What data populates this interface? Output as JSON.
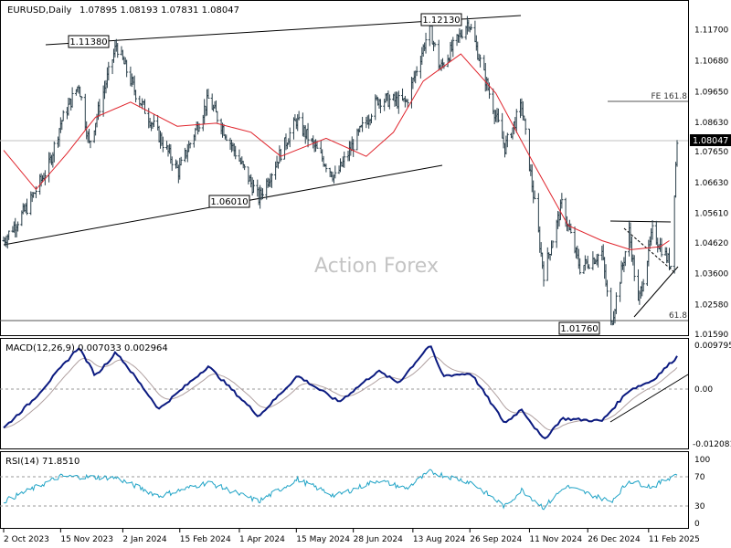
{
  "chart_data": [
    {
      "type": "ohlc",
      "title": "EURUSD,Daily",
      "ohlc_readout": "1.07895 1.08193 1.07831 1.08047",
      "watermark": "Action Forex",
      "current_price": 1.08047,
      "current_price_label": "1.08047",
      "ylim": [
        1.0159,
        1.1245
      ],
      "y_ticks": [
        1.117,
        1.1068,
        1.0965,
        1.0863,
        1.0765,
        1.0663,
        1.0561,
        1.0462,
        1.036,
        1.0258,
        1.0159
      ],
      "y_tick_labels": [
        "1.11700",
        "1.10680",
        "1.09650",
        "1.08630",
        "1.07650",
        "1.06630",
        "1.05610",
        "1.04620",
        "1.03600",
        "1.02580",
        "1.01590"
      ],
      "x_tick_labels": [
        "2 Oct 2023",
        "15 Nov 2023",
        "2 Jan 2024",
        "15 Feb 2024",
        "1 Apr 2024",
        "15 May 2024",
        "28 Jun 2024",
        "13 Aug 2024",
        "26 Sep 2024",
        "11 Nov 2024",
        "26 Dec 2024",
        "11 Feb 2025"
      ],
      "annotations": [
        {
          "label": "1.11380",
          "value": 1.1138,
          "kind": "box"
        },
        {
          "label": "1.12130",
          "value": 1.1213,
          "kind": "box"
        },
        {
          "label": "1.06010",
          "value": 1.0601,
          "kind": "box"
        },
        {
          "label": "1.01760",
          "value": 1.0176,
          "kind": "box"
        },
        {
          "label": "FE 161.8",
          "value": 1.0935,
          "kind": "level"
        },
        {
          "label": "61.8",
          "value": 1.0185,
          "kind": "level"
        }
      ],
      "close_series_keypoints": [
        {
          "x": "2023-10-02",
          "y": 1.047
        },
        {
          "x": "2023-10-20",
          "y": 1.058
        },
        {
          "x": "2023-11-06",
          "y": 1.072
        },
        {
          "x": "2023-11-15",
          "y": 1.086
        },
        {
          "x": "2023-11-29",
          "y": 1.099
        },
        {
          "x": "2023-12-07",
          "y": 1.079
        },
        {
          "x": "2023-12-28",
          "y": 1.112
        },
        {
          "x": "2024-01-12",
          "y": 1.096
        },
        {
          "x": "2024-02-14",
          "y": 1.07
        },
        {
          "x": "2024-03-08",
          "y": 1.094
        },
        {
          "x": "2024-04-16",
          "y": 1.061
        },
        {
          "x": "2024-05-15",
          "y": 1.087
        },
        {
          "x": "2024-06-14",
          "y": 1.068
        },
        {
          "x": "2024-07-17",
          "y": 1.094
        },
        {
          "x": "2024-08-08",
          "y": 1.093
        },
        {
          "x": "2024-08-26",
          "y": 1.118
        },
        {
          "x": "2024-09-03",
          "y": 1.104
        },
        {
          "x": "2024-09-25",
          "y": 1.12
        },
        {
          "x": "2024-10-23",
          "y": 1.078
        },
        {
          "x": "2024-11-05",
          "y": 1.092
        },
        {
          "x": "2024-11-22",
          "y": 1.036
        },
        {
          "x": "2024-12-06",
          "y": 1.059
        },
        {
          "x": "2024-12-20",
          "y": 1.038
        },
        {
          "x": "2025-01-06",
          "y": 1.043
        },
        {
          "x": "2025-01-13",
          "y": 1.019
        },
        {
          "x": "2025-01-27",
          "y": 1.05
        },
        {
          "x": "2025-02-03",
          "y": 1.026
        },
        {
          "x": "2025-02-14",
          "y": 1.05
        },
        {
          "x": "2025-02-28",
          "y": 1.039
        },
        {
          "x": "2025-03-05",
          "y": 1.0805
        }
      ],
      "moving_average_keypoints": [
        {
          "x": "2023-10-02",
          "y": 1.077
        },
        {
          "x": "2023-10-27",
          "y": 1.064
        },
        {
          "x": "2023-11-20",
          "y": 1.076
        },
        {
          "x": "2023-12-12",
          "y": 1.088
        },
        {
          "x": "2024-01-08",
          "y": 1.093
        },
        {
          "x": "2024-02-13",
          "y": 1.085
        },
        {
          "x": "2024-03-14",
          "y": 1.086
        },
        {
          "x": "2024-04-10",
          "y": 1.083
        },
        {
          "x": "2024-05-03",
          "y": 1.075
        },
        {
          "x": "2024-06-07",
          "y": 1.081
        },
        {
          "x": "2024-07-08",
          "y": 1.075
        },
        {
          "x": "2024-07-29",
          "y": 1.083
        },
        {
          "x": "2024-08-21",
          "y": 1.1
        },
        {
          "x": "2024-09-19",
          "y": 1.109
        },
        {
          "x": "2024-10-16",
          "y": 1.096
        },
        {
          "x": "2024-11-15",
          "y": 1.072
        },
        {
          "x": "2024-12-11",
          "y": 1.052
        },
        {
          "x": "2025-01-06",
          "y": 1.047
        },
        {
          "x": "2025-01-28",
          "y": 1.044
        },
        {
          "x": "2025-02-20",
          "y": 1.045
        },
        {
          "x": "2025-02-27",
          "y": 1.047
        }
      ]
    },
    {
      "type": "line",
      "title": "MACD(12,26,9) 0.007033 0.002964",
      "ylim": [
        -0.012081,
        0.009795
      ],
      "y_tick_labels": [
        "0.009795",
        "0.00",
        "-0.012081"
      ],
      "series": [
        {
          "name": "MACD",
          "values_keypoints": [
            {
              "x": "2023-10-02",
              "y": -0.008
            },
            {
              "x": "2023-10-25",
              "y": -0.002
            },
            {
              "x": "2023-11-29",
              "y": 0.009
            },
            {
              "x": "2023-12-12",
              "y": 0.003
            },
            {
              "x": "2023-12-28",
              "y": 0.008
            },
            {
              "x": "2024-01-30",
              "y": -0.004
            },
            {
              "x": "2024-03-08",
              "y": 0.005
            },
            {
              "x": "2024-04-16",
              "y": -0.0055
            },
            {
              "x": "2024-05-16",
              "y": 0.003
            },
            {
              "x": "2024-06-17",
              "y": -0.0025
            },
            {
              "x": "2024-07-17",
              "y": 0.004
            },
            {
              "x": "2024-08-02",
              "y": 0.0015
            },
            {
              "x": "2024-08-26",
              "y": 0.0095
            },
            {
              "x": "2024-09-05",
              "y": 0.003
            },
            {
              "x": "2024-09-27",
              "y": 0.0035
            },
            {
              "x": "2024-10-23",
              "y": -0.007
            },
            {
              "x": "2024-11-05",
              "y": -0.004
            },
            {
              "x": "2024-11-22",
              "y": -0.0105
            },
            {
              "x": "2024-12-06",
              "y": -0.006
            },
            {
              "x": "2025-01-06",
              "y": -0.0065
            },
            {
              "x": "2025-01-27",
              "y": 0.0
            },
            {
              "x": "2025-02-14",
              "y": 0.002
            },
            {
              "x": "2025-03-05",
              "y": 0.007
            }
          ]
        }
      ]
    },
    {
      "type": "line",
      "title": "RSI(14) 71.8510",
      "ylim": [
        0,
        100
      ],
      "y_tick_labels": [
        "100",
        "70",
        "30",
        "0"
      ],
      "series": [
        {
          "name": "RSI",
          "values_keypoints": [
            {
              "x": "2023-10-02",
              "y": 35
            },
            {
              "x": "2023-11-15",
              "y": 68
            },
            {
              "x": "2023-12-28",
              "y": 66
            },
            {
              "x": "2024-01-30",
              "y": 42
            },
            {
              "x": "2024-03-08",
              "y": 60
            },
            {
              "x": "2024-04-16",
              "y": 35
            },
            {
              "x": "2024-05-16",
              "y": 64
            },
            {
              "x": "2024-06-14",
              "y": 42
            },
            {
              "x": "2024-07-17",
              "y": 63
            },
            {
              "x": "2024-08-08",
              "y": 52
            },
            {
              "x": "2024-08-26",
              "y": 74
            },
            {
              "x": "2024-09-27",
              "y": 60
            },
            {
              "x": "2024-10-23",
              "y": 28
            },
            {
              "x": "2024-11-05",
              "y": 50
            },
            {
              "x": "2024-11-22",
              "y": 27
            },
            {
              "x": "2024-12-09",
              "y": 55
            },
            {
              "x": "2025-01-13",
              "y": 35
            },
            {
              "x": "2025-01-27",
              "y": 62
            },
            {
              "x": "2025-02-14",
              "y": 54
            },
            {
              "x": "2025-03-05",
              "y": 71.85
            }
          ]
        }
      ]
    }
  ]
}
